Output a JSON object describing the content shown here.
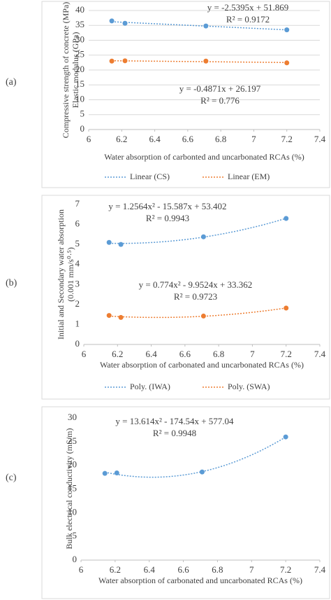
{
  "chart_data": [
    {
      "type": "scatter",
      "panel_label": "(a)",
      "label_color": "#000000",
      "xlabel": "Water absorption of carbonted and uncarbonated RCAs (%)",
      "ylabel": [
        "Compressive strength of concrete (MPa)",
        "Elastic modulus (GPa)"
      ],
      "xlim": [
        6,
        7.4
      ],
      "xticks": [
        6,
        6.2,
        6.4,
        6.6,
        6.8,
        7,
        7.2,
        7.4
      ],
      "ylim": [
        0,
        40
      ],
      "yticks": [
        0,
        5,
        10,
        15,
        20,
        25,
        30,
        35,
        40
      ],
      "grid": true,
      "legend": "bottom",
      "trendline": "linear",
      "series": [
        {
          "name": "Linear (CS)",
          "color": "#5b9bd5",
          "x": [
            6.14,
            6.22,
            6.71,
            7.2
          ],
          "values": [
            36.5,
            35.7,
            34.8,
            33.5
          ]
        },
        {
          "name": "Linear (EM)",
          "color": "#ed7d31",
          "x": [
            6.14,
            6.22,
            6.71,
            7.2
          ],
          "values": [
            23,
            23.1,
            23,
            22.4
          ]
        }
      ],
      "annotations": [
        "y = -2.5395x + 51.869",
        "R² = 0.9172",
        "y = -0.4871x + 26.197",
        "R² = 0.776"
      ]
    },
    {
      "type": "scatter",
      "panel_label": "(b)",
      "label_color": "#2e9a6a",
      "xlabel": "Water absorption of carbonated and uncarbonated RCAs (%)",
      "ylabel": [
        "Initial and Secondary water absorption",
        "(0.001 mm/s⁰·⁵)"
      ],
      "xlim": [
        6,
        7.4
      ],
      "xticks": [
        6,
        6.2,
        6.4,
        6.6,
        6.8,
        7,
        7.2,
        7.4
      ],
      "ylim": [
        0,
        7
      ],
      "yticks": [
        0,
        1,
        2,
        3,
        4,
        5,
        6,
        7
      ],
      "grid": false,
      "legend": "bottom",
      "trendline": "poly2",
      "series": [
        {
          "name": "Poly. (IWA)",
          "color": "#5b9bd5",
          "x": [
            6.15,
            6.22,
            6.71,
            7.2
          ],
          "values": [
            5.1,
            5.0,
            5.38,
            6.3
          ]
        },
        {
          "name": "Poly. (SWA)",
          "color": "#ed7d31",
          "x": [
            6.15,
            6.22,
            6.71,
            7.2
          ],
          "values": [
            1.45,
            1.35,
            1.42,
            1.82
          ]
        }
      ],
      "annotations": [
        "y = 1.2564x² - 15.587x + 53.402",
        "R² = 0.9943",
        "y = 0.774x² - 9.9524x + 33.362",
        "R² = 0.9723"
      ]
    },
    {
      "type": "scatter",
      "panel_label": "(c)",
      "label_color": "#2e9a6a",
      "xlabel": "Water absorption of carbonated and uncarbonated RCAs (%)",
      "ylabel": [
        "Bulk electrical conductivity (mS/m)"
      ],
      "xlim": [
        6,
        7.4
      ],
      "xticks": [
        6,
        6.2,
        6.4,
        6.6,
        6.8,
        7,
        7.2,
        7.4
      ],
      "ylim": [
        0,
        30
      ],
      "yticks": [
        0,
        5,
        10,
        15,
        20,
        25,
        30
      ],
      "grid": false,
      "trendline": "poly2",
      "series": [
        {
          "color": "#5b9bd5",
          "x": [
            6.14,
            6.21,
            6.71,
            7.2
          ],
          "values": [
            18.3,
            18.4,
            18.6,
            26
          ]
        }
      ],
      "annotations": [
        "y = 13.614x² - 174.54x + 577.04",
        "R² = 0.9948"
      ]
    }
  ]
}
